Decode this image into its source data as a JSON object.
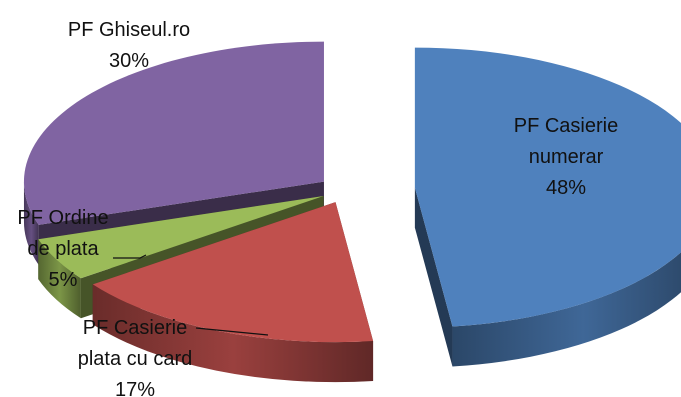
{
  "chart_data": {
    "type": "pie",
    "style": "exploded-3d",
    "legend": "none",
    "slices": [
      {
        "name": "PF Casierie numerar",
        "value": 48,
        "color": "#4f81bd",
        "label_lines": [
          "PF Casierie",
          "numerar",
          "48%"
        ]
      },
      {
        "name": "PF Casierie plata cu card",
        "value": 17,
        "color": "#c0504d",
        "label_lines": [
          "PF Casierie",
          "plata cu card",
          "17%"
        ]
      },
      {
        "name": "PF Ordine de plata",
        "value": 5,
        "color": "#9bbb59",
        "label_lines": [
          "PF Ordine",
          "de plata",
          "5%"
        ]
      },
      {
        "name": "PF Ghiseul.ro",
        "value": 30,
        "color": "#8064a2",
        "label_lines": [
          "PF Ghiseul.ro",
          "30%"
        ]
      }
    ]
  }
}
